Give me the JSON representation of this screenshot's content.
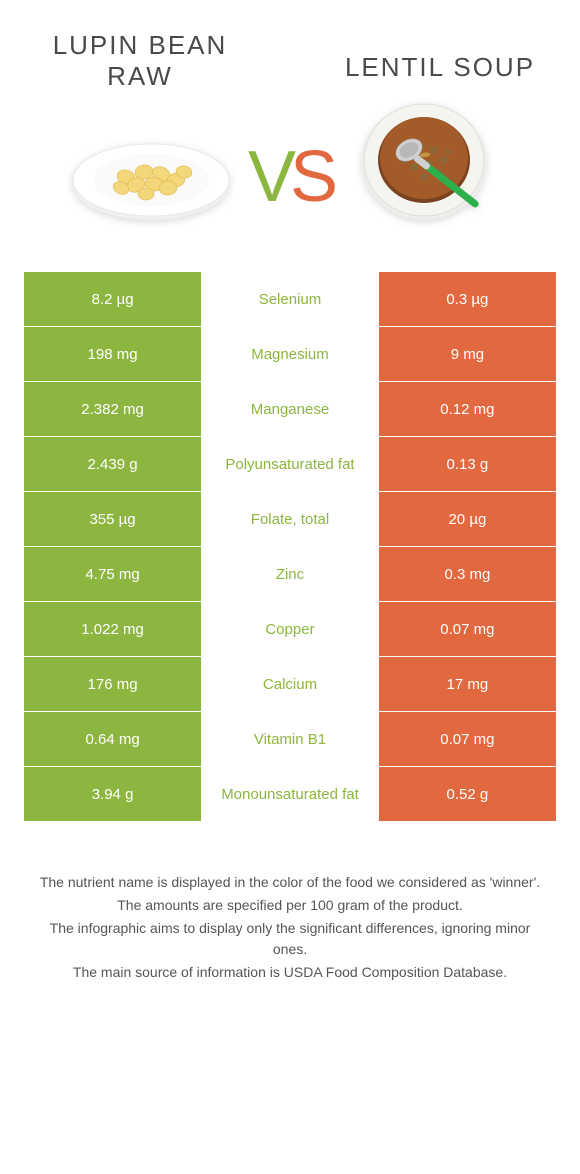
{
  "header": {
    "left_title_line1": "LUPIN BEAN",
    "left_title_line2": "RAW",
    "right_title": "LENTIL SOUP"
  },
  "vs": {
    "v": "V",
    "s": "S"
  },
  "colors": {
    "left": "#8cb63f",
    "right": "#e2683f",
    "left_text": "#ffffff",
    "right_text": "#ffffff",
    "mid_bg": "#ffffff",
    "row_border": "#ffffff",
    "footer_text": "#555555"
  },
  "rows": [
    {
      "left": "8.2 µg",
      "nutrient": "Selenium",
      "right": "0.3 µg",
      "winner": "left"
    },
    {
      "left": "198 mg",
      "nutrient": "Magnesium",
      "right": "9 mg",
      "winner": "left"
    },
    {
      "left": "2.382 mg",
      "nutrient": "Manganese",
      "right": "0.12 mg",
      "winner": "left"
    },
    {
      "left": "2.439 g",
      "nutrient": "Polyunsaturated fat",
      "right": "0.13 g",
      "winner": "left"
    },
    {
      "left": "355 µg",
      "nutrient": "Folate, total",
      "right": "20 µg",
      "winner": "left"
    },
    {
      "left": "4.75 mg",
      "nutrient": "Zinc",
      "right": "0.3 mg",
      "winner": "left"
    },
    {
      "left": "1.022 mg",
      "nutrient": "Copper",
      "right": "0.07 mg",
      "winner": "left"
    },
    {
      "left": "176 mg",
      "nutrient": "Calcium",
      "right": "17 mg",
      "winner": "left"
    },
    {
      "left": "0.64 mg",
      "nutrient": "Vitamin B1",
      "right": "0.07 mg",
      "winner": "left"
    },
    {
      "left": "3.94 g",
      "nutrient": "Monounsaturated fat",
      "right": "0.52 g",
      "winner": "left"
    }
  ],
  "footer": {
    "line1": "The nutrient name is displayed in the color of the food we considered as 'winner'.",
    "line2": "The amounts are specified per 100 gram of the product.",
    "line3": "The infographic aims to display only the significant differences, ignoring minor ones.",
    "line4": "The main source of information is USDA Food Composition Database."
  },
  "images": {
    "left_alt": "lupin-beans-plate",
    "right_alt": "lentil-soup-bowl",
    "bean_color": "#f4d77a",
    "bean_edge": "#e0b84a",
    "plate_color": "#ffffff",
    "plate_edge": "#e8e8e8",
    "soup_color": "#a35b2a",
    "soup_dark": "#7a421e",
    "soup_lentil": "#8a6a3a",
    "bowl_color": "#f5f5f0",
    "spoon_handle": "#2bb04a",
    "spoon_metal": "#d0d0d0"
  }
}
